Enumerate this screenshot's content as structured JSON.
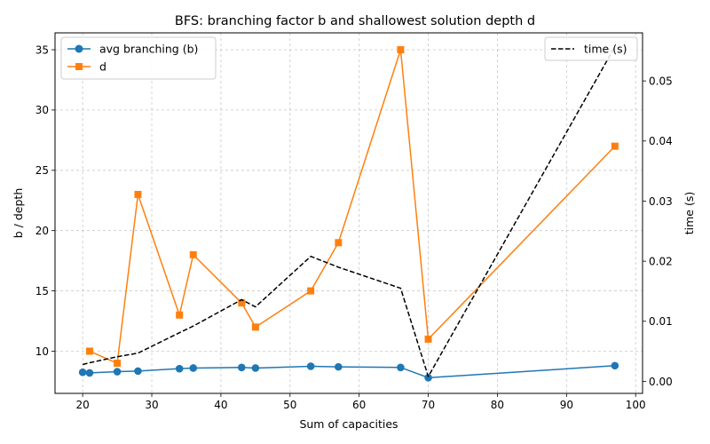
{
  "chart_data": {
    "type": "line",
    "title": "BFS: branching factor b and shallowest solution depth d",
    "xlabel": "Sum of capacities",
    "ylabel_left": "b / depth",
    "ylabel_right": "time (s)",
    "xlim": [
      16,
      101
    ],
    "ylim_left": [
      6.5,
      36.4
    ],
    "ylim_right": [
      -0.002,
      0.058
    ],
    "xticks": [
      20,
      30,
      40,
      50,
      60,
      70,
      80,
      90,
      100
    ],
    "yticks_left": [
      10,
      15,
      20,
      25,
      30,
      35
    ],
    "yticks_right": [
      0.0,
      0.01,
      0.02,
      0.03,
      0.04,
      0.05
    ],
    "yticks_right_labels": [
      "0.00",
      "0.01",
      "0.02",
      "0.03",
      "0.04",
      "0.05"
    ],
    "grid": true,
    "x": [
      20,
      21,
      25,
      28,
      34,
      36,
      43,
      45,
      53,
      57,
      66,
      70,
      97
    ],
    "series": [
      {
        "name": "avg branching (b)",
        "axis": "left",
        "color": "#1f77b4",
        "marker": "circle",
        "values": [
          8.25,
          8.2,
          8.3,
          8.35,
          8.55,
          8.6,
          8.65,
          8.6,
          8.75,
          8.7,
          8.65,
          7.8,
          8.8
        ]
      },
      {
        "name": "d",
        "axis": "left",
        "color": "#ff7f0e",
        "marker": "square",
        "values": [
          null,
          10,
          9,
          23,
          13,
          18,
          14,
          12,
          15,
          19,
          35,
          11,
          27
        ]
      },
      {
        "name": "time (s)",
        "axis": "right",
        "color": "#000000",
        "style": "dashed",
        "values": [
          0.0028,
          0.0031,
          0.0041,
          0.0047,
          0.0081,
          0.0092,
          0.0136,
          0.0124,
          0.0208,
          0.019,
          0.0155,
          0.0008,
          0.0557
        ]
      }
    ],
    "legend_left": [
      "avg branching (b)",
      "d"
    ],
    "legend_right": [
      "time (s)"
    ],
    "legend_left_placement": "top-left",
    "legend_right_placement": "top-right"
  }
}
